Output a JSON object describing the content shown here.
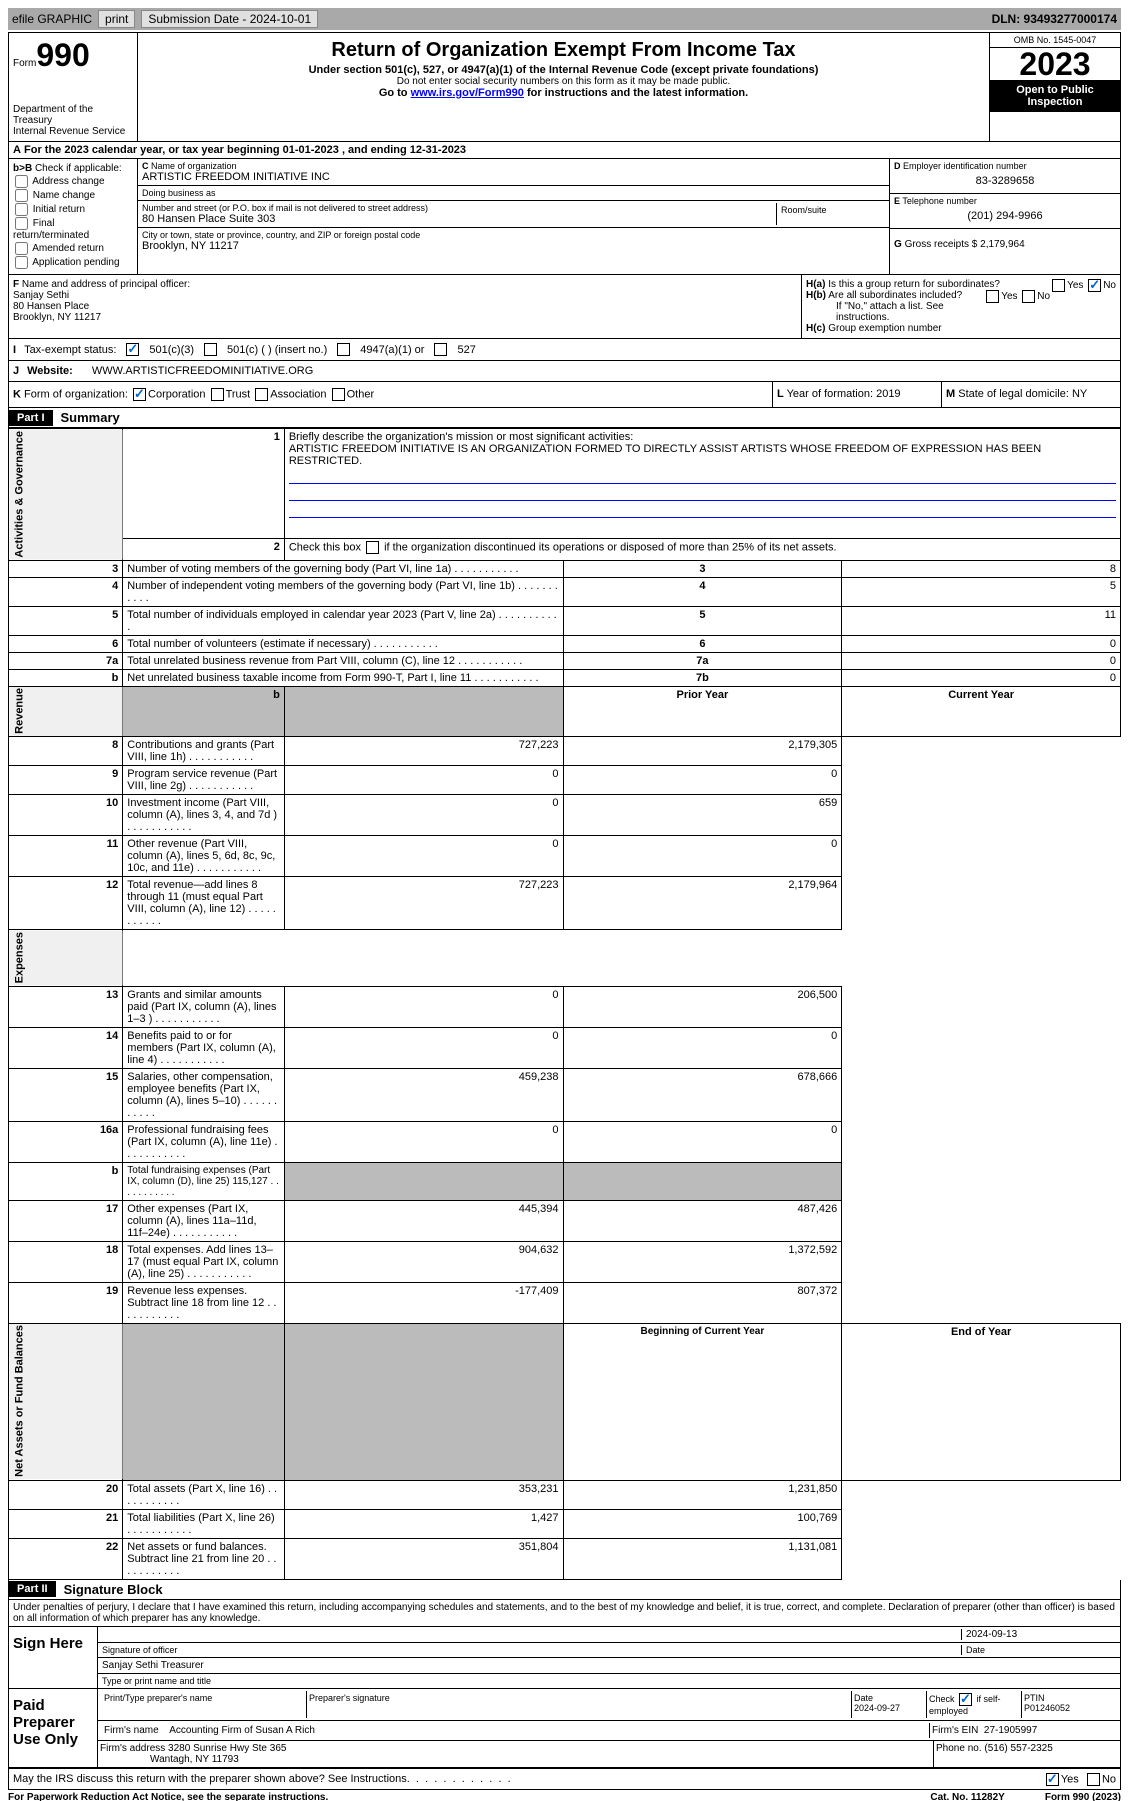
{
  "topbar": {
    "efile": "efile GRAPHIC",
    "print": "print",
    "sub_label": "Submission Date - 2024-10-01",
    "dln": "DLN: 93493277000174"
  },
  "header": {
    "form_word": "Form",
    "form_no": "990",
    "title": "Return of Organization Exempt From Income Tax",
    "sub": "Under section 501(c), 527, or 4947(a)(1) of the Internal Revenue Code (except private foundations)",
    "sub2": "Do not enter social security numbers on this form as it may be made public.",
    "sub3": "Go to ",
    "link": "www.irs.gov/Form990",
    "sub3b": " for instructions and the latest information.",
    "dept": "Department of the Treasury",
    "irs": "Internal Revenue Service",
    "omb": "OMB No. 1545-0047",
    "year": "2023",
    "open": "Open to Public Inspection"
  },
  "A": {
    "text": "For the 2023 calendar year, or tax year beginning 01-01-2023   , and ending 12-31-2023"
  },
  "B": {
    "label": "Check if applicable:",
    "addr": "Address change",
    "name": "Name change",
    "init": "Initial return",
    "final": "Final return/terminated",
    "amend": "Amended return",
    "app": "Application pending"
  },
  "C": {
    "name_lbl": "Name of organization",
    "name": "ARTISTIC FREEDOM INITIATIVE INC",
    "dba_lbl": "Doing business as",
    "dba": "",
    "street_lbl": "Number and street (or P.O. box if mail is not delivered to street address)",
    "street": "80 Hansen Place Suite 303",
    "room_lbl": "Room/suite",
    "city_lbl": "City or town, state or province, country, and ZIP or foreign postal code",
    "city": "Brooklyn, NY  11217"
  },
  "D": {
    "lbl": "Employer identification number",
    "val": "83-3289658"
  },
  "E": {
    "lbl": "Telephone number",
    "val": "(201) 294-9966"
  },
  "G": {
    "lbl": "Gross receipts $",
    "val": "2,179,964"
  },
  "F": {
    "lbl": "Name and address of principal officer:",
    "name": "Sanjay Sethi",
    "street": "80 Hansen Place",
    "city": "Brooklyn, NY  11217"
  },
  "H": {
    "a": "Is this a group return for subordinates?",
    "b": "Are all subordinates included?",
    "b2": "If \"No,\" attach a list. See instructions.",
    "c": "Group exemption number",
    "yes": "Yes",
    "no": "No"
  },
  "I": {
    "lbl": "Tax-exempt status:",
    "o1": "501(c)(3)",
    "o2": "501(c) (  ) (insert no.)",
    "o3": "4947(a)(1) or",
    "o4": "527"
  },
  "J": {
    "lbl": "Website:",
    "val": "WWW.ARTISTICFREEDOMINITIATIVE.ORG"
  },
  "K": {
    "lbl": "Form of organization:",
    "corp": "Corporation",
    "trust": "Trust",
    "assoc": "Association",
    "other": "Other"
  },
  "L": {
    "lbl": "Year of formation:",
    "val": "2019"
  },
  "M": {
    "lbl": "State of legal domicile:",
    "val": "NY"
  },
  "part1": {
    "hdr": "Part I",
    "title": "Summary",
    "l1_lbl": "Briefly describe the organization's mission or most significant activities:",
    "l1": "ARTISTIC FREEDOM INITIATIVE IS AN ORGANIZATION FORMED TO DIRECTLY ASSIST ARTISTS WHOSE FREEDOM OF EXPRESSION HAS BEEN RESTRICTED.",
    "l2": "Check this box         if the organization discontinued its operations or disposed of more than 25% of its net assets.",
    "tab_ag": "Activities & Governance",
    "tab_rev": "Revenue",
    "tab_exp": "Expenses",
    "tab_na": "Net Assets or Fund Balances",
    "lines_ag": [
      {
        "n": "3",
        "t": "Number of voting members of the governing body (Part VI, line 1a)",
        "c": "3",
        "v": "8"
      },
      {
        "n": "4",
        "t": "Number of independent voting members of the governing body (Part VI, line 1b)",
        "c": "4",
        "v": "5"
      },
      {
        "n": "5",
        "t": "Total number of individuals employed in calendar year 2023 (Part V, line 2a)",
        "c": "5",
        "v": "11"
      },
      {
        "n": "6",
        "t": "Total number of volunteers (estimate if necessary)",
        "c": "6",
        "v": "0"
      },
      {
        "n": "7a",
        "t": "Total unrelated business revenue from Part VIII, column (C), line 12",
        "c": "7a",
        "v": "0"
      },
      {
        "n": "b",
        "t": "Net unrelated business taxable income from Form 990-T, Part I, line 11",
        "c": "7b",
        "v": "0"
      }
    ],
    "hdr_py": "Prior Year",
    "hdr_cy": "Current Year",
    "lines_rev": [
      {
        "n": "8",
        "t": "Contributions and grants (Part VIII, line 1h)",
        "py": "727,223",
        "cy": "2,179,305"
      },
      {
        "n": "9",
        "t": "Program service revenue (Part VIII, line 2g)",
        "py": "0",
        "cy": "0"
      },
      {
        "n": "10",
        "t": "Investment income (Part VIII, column (A), lines 3, 4, and 7d )",
        "py": "0",
        "cy": "659"
      },
      {
        "n": "11",
        "t": "Other revenue (Part VIII, column (A), lines 5, 6d, 8c, 9c, 10c, and 11e)",
        "py": "0",
        "cy": "0"
      },
      {
        "n": "12",
        "t": "Total revenue—add lines 8 through 11 (must equal Part VIII, column (A), line 12)",
        "py": "727,223",
        "cy": "2,179,964"
      }
    ],
    "lines_exp": [
      {
        "n": "13",
        "t": "Grants and similar amounts paid (Part IX, column (A), lines 1–3 )",
        "py": "0",
        "cy": "206,500"
      },
      {
        "n": "14",
        "t": "Benefits paid to or for members (Part IX, column (A), line 4)",
        "py": "0",
        "cy": "0"
      },
      {
        "n": "15",
        "t": "Salaries, other compensation, employee benefits (Part IX, column (A), lines 5–10)",
        "py": "459,238",
        "cy": "678,666"
      },
      {
        "n": "16a",
        "t": "Professional fundraising fees (Part IX, column (A), line 11e)",
        "py": "0",
        "cy": "0"
      },
      {
        "n": "b",
        "t": "Total fundraising expenses (Part IX, column (D), line 25) 115,127",
        "py": "",
        "cy": "",
        "shaded": true,
        "small": true
      },
      {
        "n": "17",
        "t": "Other expenses (Part IX, column (A), lines 11a–11d, 11f–24e)",
        "py": "445,394",
        "cy": "487,426"
      },
      {
        "n": "18",
        "t": "Total expenses. Add lines 13–17 (must equal Part IX, column (A), line 25)",
        "py": "904,632",
        "cy": "1,372,592"
      },
      {
        "n": "19",
        "t": "Revenue less expenses. Subtract line 18 from line 12",
        "py": "-177,409",
        "cy": "807,372"
      }
    ],
    "hdr_boy": "Beginning of Current Year",
    "hdr_eoy": "End of Year",
    "lines_na": [
      {
        "n": "20",
        "t": "Total assets (Part X, line 16)",
        "py": "353,231",
        "cy": "1,231,850"
      },
      {
        "n": "21",
        "t": "Total liabilities (Part X, line 26)",
        "py": "1,427",
        "cy": "100,769"
      },
      {
        "n": "22",
        "t": "Net assets or fund balances. Subtract line 21 from line 20",
        "py": "351,804",
        "cy": "1,131,081"
      }
    ]
  },
  "part2": {
    "hdr": "Part II",
    "title": "Signature Block",
    "decl": "Under penalties of perjury, I declare that I have examined this return, including accompanying schedules and statements, and to the best of my knowledge and belief, it is true, correct, and complete. Declaration of preparer (other than officer) is based on all information of which preparer has any knowledge.",
    "sign_here": "Sign Here",
    "sig_off": "Signature of officer",
    "date": "Date",
    "date_val": "2024-09-13",
    "officer": "Sanjay Sethi  Treasurer",
    "type_lbl": "Type or print name and title",
    "paid": "Paid Preparer Use Only",
    "prep_name_lbl": "Print/Type preparer's name",
    "prep_sig_lbl": "Preparer's signature",
    "prep_date": "2024-09-27",
    "check_self": "Check         if self-employed",
    "ptin_lbl": "PTIN",
    "ptin": "P01246052",
    "firm_name_lbl": "Firm's name",
    "firm_name": "Accounting Firm of Susan A Rich",
    "firm_ein_lbl": "Firm's EIN",
    "firm_ein": "27-1905997",
    "firm_addr_lbl": "Firm's address",
    "firm_addr": "3280 Sunrise Hwy Ste 365",
    "firm_city": "Wantagh, NY  11793",
    "phone_lbl": "Phone no.",
    "phone": "(516) 557-2325",
    "discuss": "May the IRS discuss this return with the preparer shown above? See Instructions."
  },
  "footer": {
    "pra": "For Paperwork Reduction Act Notice, see the separate instructions.",
    "cat": "Cat. No. 11282Y",
    "form": "Form 990 (2023)"
  }
}
